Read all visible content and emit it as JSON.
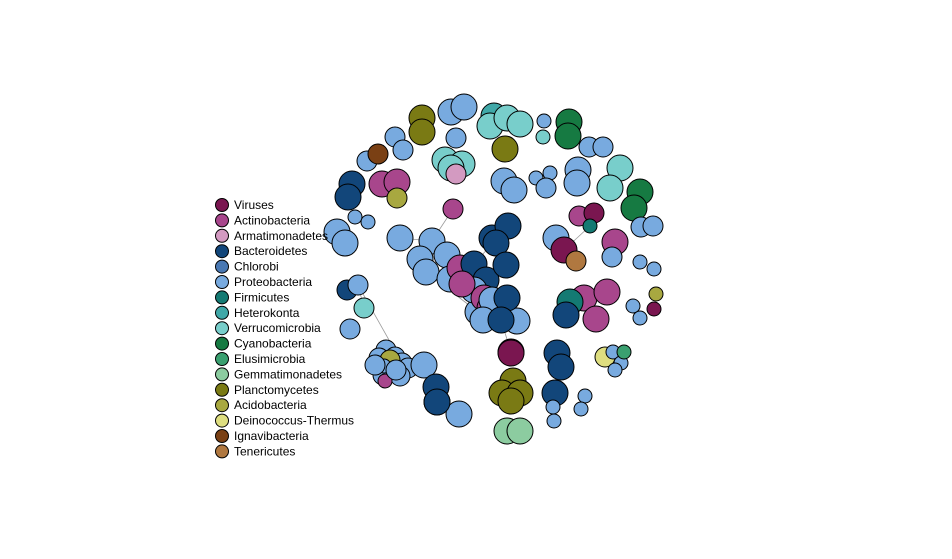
{
  "legend": {
    "items": [
      {
        "label": "Viruses",
        "color": "#7a1650"
      },
      {
        "label": "Actinobacteria",
        "color": "#a8468c"
      },
      {
        "label": "Armatimonadetes",
        "color": "#d39ac1"
      },
      {
        "label": "Bacteroidetes",
        "color": "#12467a"
      },
      {
        "label": "Chlorobi",
        "color": "#4978b3"
      },
      {
        "label": "Proteobacteria",
        "color": "#78aadf"
      },
      {
        "label": "Firmicutes",
        "color": "#147a73"
      },
      {
        "label": "Heterokonta",
        "color": "#40a8a8"
      },
      {
        "label": "Verrucomicrobia",
        "color": "#78cecb"
      },
      {
        "label": "Cyanobacteria",
        "color": "#167a42"
      },
      {
        "label": "Elusimicrobia",
        "color": "#3aa070"
      },
      {
        "label": "Gemmatimonadetes",
        "color": "#8ccca0"
      },
      {
        "label": "Planctomycetes",
        "color": "#7a7a14"
      },
      {
        "label": "Acidobacteria",
        "color": "#a8a840"
      },
      {
        "label": "Deinococcus-Thermus",
        "color": "#dede80"
      },
      {
        "label": "Ignavibacteria",
        "color": "#7a4014"
      },
      {
        "label": "Tenericutes",
        "color": "#b07840"
      }
    ]
  },
  "network": {
    "nodes": [
      {
        "phylum": "Planctomycetes",
        "size": "large"
      },
      {
        "phylum": "Planctomycetes",
        "size": "large"
      },
      {
        "phylum": "Proteobacteria",
        "size": "large"
      },
      {
        "phylum": "Proteobacteria",
        "size": "large"
      },
      {
        "phylum": "Heterokonta",
        "size": "large"
      },
      {
        "phylum": "Verrucomicrobia",
        "size": "large"
      },
      {
        "phylum": "Verrucomicrobia",
        "size": "large"
      },
      {
        "phylum": "Verrucomicrobia",
        "size": "large"
      },
      {
        "phylum": "Proteobacteria",
        "size": "small"
      },
      {
        "phylum": "Verrucomicrobia",
        "size": "small"
      },
      {
        "phylum": "Cyanobacteria",
        "size": "large"
      },
      {
        "phylum": "Cyanobacteria",
        "size": "large"
      },
      {
        "phylum": "Proteobacteria",
        "size": "medium"
      },
      {
        "phylum": "Proteobacteria",
        "size": "medium"
      },
      {
        "phylum": "Proteobacteria",
        "size": "medium"
      },
      {
        "phylum": "Proteobacteria",
        "size": "medium"
      },
      {
        "phylum": "Planctomycetes",
        "size": "large"
      },
      {
        "phylum": "Ignavibacteria",
        "size": "medium"
      },
      {
        "phylum": "Proteobacteria",
        "size": "medium"
      },
      {
        "phylum": "Proteobacteria",
        "size": "medium"
      },
      {
        "phylum": "Verrucomicrobia",
        "size": "large"
      },
      {
        "phylum": "Verrucomicrobia",
        "size": "large"
      },
      {
        "phylum": "Verrucomicrobia",
        "size": "large"
      },
      {
        "phylum": "Armatimonadetes",
        "size": "medium"
      },
      {
        "phylum": "Proteobacteria",
        "size": "large"
      },
      {
        "phylum": "Proteobacteria",
        "size": "large"
      },
      {
        "phylum": "Proteobacteria",
        "size": "small"
      },
      {
        "phylum": "Proteobacteria",
        "size": "small"
      },
      {
        "phylum": "Proteobacteria",
        "size": "medium"
      },
      {
        "phylum": "Proteobacteria",
        "size": "large"
      },
      {
        "phylum": "Proteobacteria",
        "size": "large"
      },
      {
        "phylum": "Verrucomicrobia",
        "size": "large"
      },
      {
        "phylum": "Verrucomicrobia",
        "size": "large"
      },
      {
        "phylum": "Cyanobacteria",
        "size": "large"
      },
      {
        "phylum": "Cyanobacteria",
        "size": "large"
      },
      {
        "phylum": "Bacteroidetes",
        "size": "large"
      },
      {
        "phylum": "Bacteroidetes",
        "size": "large"
      },
      {
        "phylum": "Actinobacteria",
        "size": "large"
      },
      {
        "phylum": "Actinobacteria",
        "size": "large"
      },
      {
        "phylum": "Acidobacteria",
        "size": "medium"
      },
      {
        "phylum": "Proteobacteria",
        "size": "small"
      },
      {
        "phylum": "Proteobacteria",
        "size": "small"
      },
      {
        "phylum": "Proteobacteria",
        "size": "large"
      },
      {
        "phylum": "Proteobacteria",
        "size": "large"
      },
      {
        "phylum": "Actinobacteria",
        "size": "medium"
      },
      {
        "phylum": "Proteobacteria",
        "size": "large"
      },
      {
        "phylum": "Proteobacteria",
        "size": "large"
      },
      {
        "phylum": "Proteobacteria",
        "size": "large"
      },
      {
        "phylum": "Proteobacteria",
        "size": "large"
      },
      {
        "phylum": "Proteobacteria",
        "size": "large"
      },
      {
        "phylum": "Proteobacteria",
        "size": "large"
      },
      {
        "phylum": "Proteobacteria",
        "size": "large"
      },
      {
        "phylum": "Proteobacteria",
        "size": "large"
      },
      {
        "phylum": "Bacteroidetes",
        "size": "large"
      },
      {
        "phylum": "Bacteroidetes",
        "size": "large"
      },
      {
        "phylum": "Bacteroidetes",
        "size": "large"
      },
      {
        "phylum": "Actinobacteria",
        "size": "large"
      },
      {
        "phylum": "Bacteroidetes",
        "size": "large"
      },
      {
        "phylum": "Bacteroidetes",
        "size": "large"
      },
      {
        "phylum": "Proteobacteria",
        "size": "large"
      },
      {
        "phylum": "Actinobacteria",
        "size": "large"
      },
      {
        "phylum": "Actinobacteria",
        "size": "large"
      },
      {
        "phylum": "Actinobacteria",
        "size": "large"
      },
      {
        "phylum": "Bacteroidetes",
        "size": "large"
      },
      {
        "phylum": "Proteobacteria",
        "size": "large"
      },
      {
        "phylum": "Proteobacteria",
        "size": "large"
      },
      {
        "phylum": "Proteobacteria",
        "size": "large"
      },
      {
        "phylum": "Bacteroidetes",
        "size": "large"
      },
      {
        "phylum": "Bacteroidetes",
        "size": "large"
      },
      {
        "phylum": "Viruses",
        "size": "large"
      },
      {
        "phylum": "Proteobacteria",
        "size": "large"
      },
      {
        "phylum": "Actinobacteria",
        "size": "medium"
      },
      {
        "phylum": "Viruses",
        "size": "medium"
      },
      {
        "phylum": "Firmicutes",
        "size": "small"
      },
      {
        "phylum": "Proteobacteria",
        "size": "medium"
      },
      {
        "phylum": "Proteobacteria",
        "size": "medium"
      },
      {
        "phylum": "Proteobacteria",
        "size": "medium"
      },
      {
        "phylum": "Actinobacteria",
        "size": "large"
      },
      {
        "phylum": "Viruses",
        "size": "large"
      },
      {
        "phylum": "Tenericutes",
        "size": "medium"
      },
      {
        "phylum": "Proteobacteria",
        "size": "medium"
      },
      {
        "phylum": "Proteobacteria",
        "size": "small"
      },
      {
        "phylum": "Proteobacteria",
        "size": "small"
      },
      {
        "phylum": "Actinobacteria",
        "size": "large"
      },
      {
        "phylum": "Actinobacteria",
        "size": "large"
      },
      {
        "phylum": "Firmicutes",
        "size": "large"
      },
      {
        "phylum": "Bacteroidetes",
        "size": "large"
      },
      {
        "phylum": "Actinobacteria",
        "size": "large"
      },
      {
        "phylum": "Acidobacteria",
        "size": "small"
      },
      {
        "phylum": "Viruses",
        "size": "small"
      },
      {
        "phylum": "Proteobacteria",
        "size": "small"
      },
      {
        "phylum": "Proteobacteria",
        "size": "small"
      },
      {
        "phylum": "Bacteroidetes",
        "size": "large"
      },
      {
        "phylum": "Bacteroidetes",
        "size": "large"
      },
      {
        "phylum": "Bacteroidetes",
        "size": "large"
      },
      {
        "phylum": "Deinococcus-Thermus",
        "size": "medium"
      },
      {
        "phylum": "Proteobacteria",
        "size": "small"
      },
      {
        "phylum": "Proteobacteria",
        "size": "small"
      },
      {
        "phylum": "Proteobacteria",
        "size": "small"
      },
      {
        "phylum": "Elusimicrobia",
        "size": "small"
      },
      {
        "phylum": "Viruses",
        "size": "large"
      },
      {
        "phylum": "Planctomycetes",
        "size": "large"
      },
      {
        "phylum": "Planctomycetes",
        "size": "large"
      },
      {
        "phylum": "Planctomycetes",
        "size": "large"
      },
      {
        "phylum": "Planctomycetes",
        "size": "large"
      },
      {
        "phylum": "Bacteroidetes",
        "size": "medium"
      },
      {
        "phylum": "Proteobacteria",
        "size": "small"
      },
      {
        "phylum": "Proteobacteria",
        "size": "small"
      },
      {
        "phylum": "Proteobacteria",
        "size": "small"
      },
      {
        "phylum": "Proteobacteria",
        "size": "small"
      },
      {
        "phylum": "Gemmatimonadetes",
        "size": "large"
      },
      {
        "phylum": "Gemmatimonadetes",
        "size": "large"
      },
      {
        "phylum": "Bacteroidetes",
        "size": "medium"
      },
      {
        "phylum": "Verrucomicrobia",
        "size": "medium"
      },
      {
        "phylum": "Proteobacteria",
        "size": "medium"
      },
      {
        "phylum": "Proteobacteria",
        "size": "medium"
      },
      {
        "phylum": "Proteobacteria",
        "size": "medium"
      },
      {
        "phylum": "Proteobacteria",
        "size": "medium"
      },
      {
        "phylum": "Proteobacteria",
        "size": "medium"
      },
      {
        "phylum": "Proteobacteria",
        "size": "medium"
      },
      {
        "phylum": "Proteobacteria",
        "size": "medium"
      },
      {
        "phylum": "Proteobacteria",
        "size": "medium"
      },
      {
        "phylum": "Proteobacteria",
        "size": "medium"
      },
      {
        "phylum": "Actinobacteria",
        "size": "small"
      },
      {
        "phylum": "Acidobacteria",
        "size": "medium"
      },
      {
        "phylum": "Bacteroidetes",
        "size": "medium"
      },
      {
        "phylum": "Proteobacteria",
        "size": "medium"
      },
      {
        "phylum": "Proteobacteria",
        "size": "medium"
      },
      {
        "phylum": "Proteobacteria",
        "size": "medium"
      },
      {
        "phylum": "Proteobacteria",
        "size": "small"
      },
      {
        "phylum": "Proteobacteria",
        "size": "medium"
      },
      {
        "phylum": "Proteobacteria",
        "size": "medium"
      },
      {
        "phylum": "Proteobacteria",
        "size": "small"
      },
      {
        "phylum": "Bacteroidetes",
        "size": "medium"
      },
      {
        "phylum": "Proteobacteria",
        "size": "large"
      },
      {
        "phylum": "Proteobacteria",
        "size": "large"
      },
      {
        "phylum": "Proteobacteria",
        "size": "large"
      },
      {
        "phylum": "Bacteroidetes",
        "size": "large"
      },
      {
        "phylum": "Bacteroidetes",
        "size": "large"
      },
      {
        "phylum": "Proteobacteria",
        "size": "large"
      },
      {
        "phylum": "Proteobacteria",
        "size": "large"
      },
      {
        "phylum": "Proteobacteria",
        "size": "large"
      }
    ],
    "edges": [
      [
        45,
        46
      ],
      [
        46,
        49
      ],
      [
        49,
        52
      ],
      [
        52,
        59
      ],
      [
        59,
        61
      ],
      [
        53,
        54
      ],
      [
        54,
        57
      ],
      [
        57,
        60
      ],
      [
        60,
        66
      ],
      [
        58,
        67
      ],
      [
        67,
        68
      ],
      [
        68,
        69
      ],
      [
        44,
        47
      ],
      [
        113,
        114
      ],
      [
        114,
        119
      ],
      [
        119,
        121
      ],
      [
        121,
        132
      ],
      [
        132,
        133
      ],
      [
        133,
        134
      ],
      [
        125,
        136
      ],
      [
        72,
        73
      ],
      [
        73,
        78
      ],
      [
        78,
        79
      ],
      [
        101,
        102
      ],
      [
        102,
        103
      ],
      [
        103,
        104
      ]
    ]
  }
}
